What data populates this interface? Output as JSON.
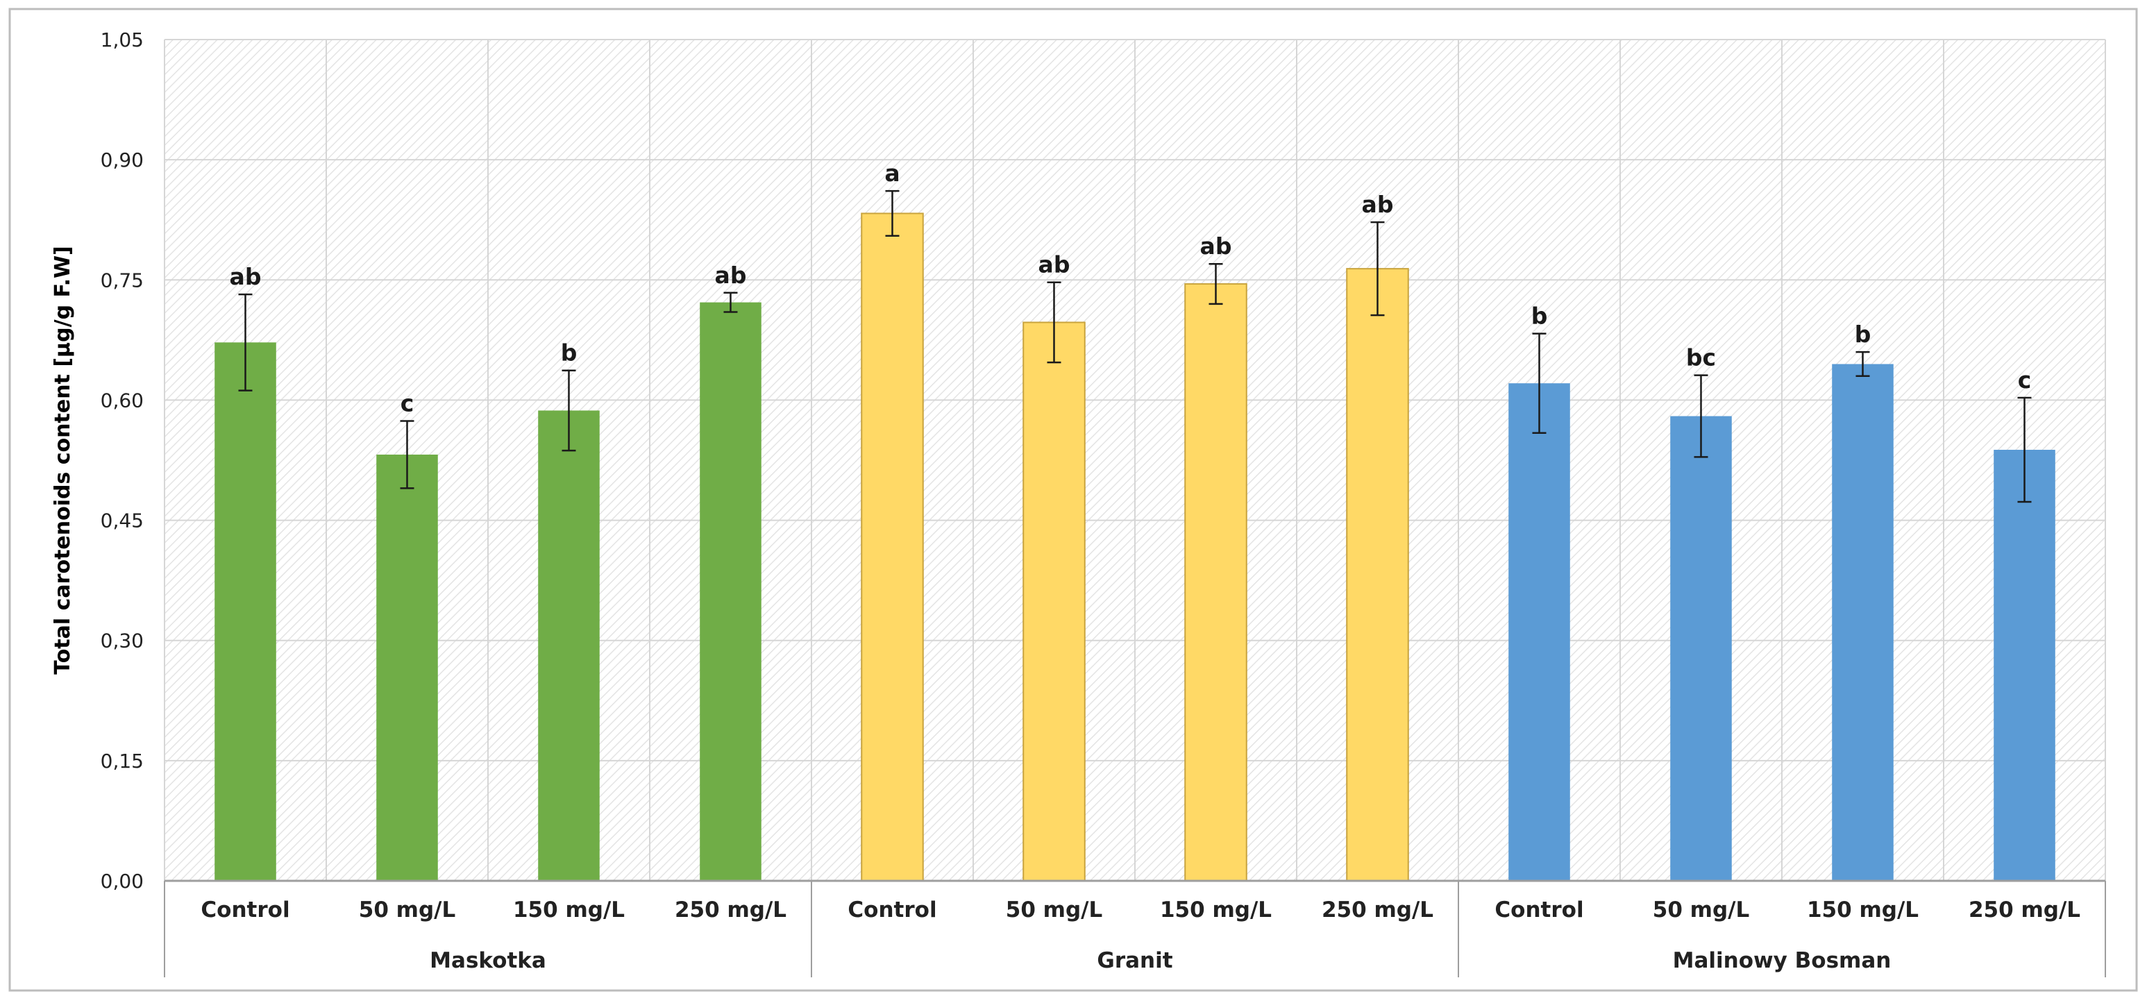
{
  "chart_data": {
    "type": "bar",
    "ylabel": "Total carotenoids content [µg/g F.W]",
    "ylim": [
      0,
      1.05
    ],
    "yticks": [
      "0,00",
      "0,15",
      "0,30",
      "0,45",
      "0,60",
      "0,75",
      "0,90",
      "1,05"
    ],
    "grid": true,
    "groups": [
      {
        "name": "Maskotka",
        "color": "#70ad47",
        "bars": [
          {
            "label": "Control",
            "value": 0.672,
            "error": 0.06,
            "letter": "ab"
          },
          {
            "label": "50 mg/L",
            "value": 0.532,
            "error": 0.042,
            "letter": "c"
          },
          {
            "label": "150 mg/L",
            "value": 0.587,
            "error": 0.05,
            "letter": "b"
          },
          {
            "label": "250 mg/L",
            "value": 0.722,
            "error": 0.012,
            "letter": "ab"
          }
        ]
      },
      {
        "name": "Granit",
        "color": "#ffd966",
        "bars": [
          {
            "label": "Control",
            "value": 0.833,
            "error": 0.028,
            "letter": "a"
          },
          {
            "label": "50 mg/L",
            "value": 0.697,
            "error": 0.05,
            "letter": "ab"
          },
          {
            "label": "150 mg/L",
            "value": 0.745,
            "error": 0.025,
            "letter": "ab"
          },
          {
            "label": "250 mg/L",
            "value": 0.764,
            "error": 0.058,
            "letter": "ab"
          }
        ]
      },
      {
        "name": "Malinowy Bosman",
        "color": "#5b9bd5",
        "bars": [
          {
            "label": "Control",
            "value": 0.621,
            "error": 0.062,
            "letter": "b"
          },
          {
            "label": "50 mg/L",
            "value": 0.58,
            "error": 0.051,
            "letter": "bc"
          },
          {
            "label": "150 mg/L",
            "value": 0.645,
            "error": 0.015,
            "letter": "b"
          },
          {
            "label": "250 mg/L",
            "value": 0.538,
            "error": 0.065,
            "letter": "c"
          }
        ]
      }
    ]
  }
}
